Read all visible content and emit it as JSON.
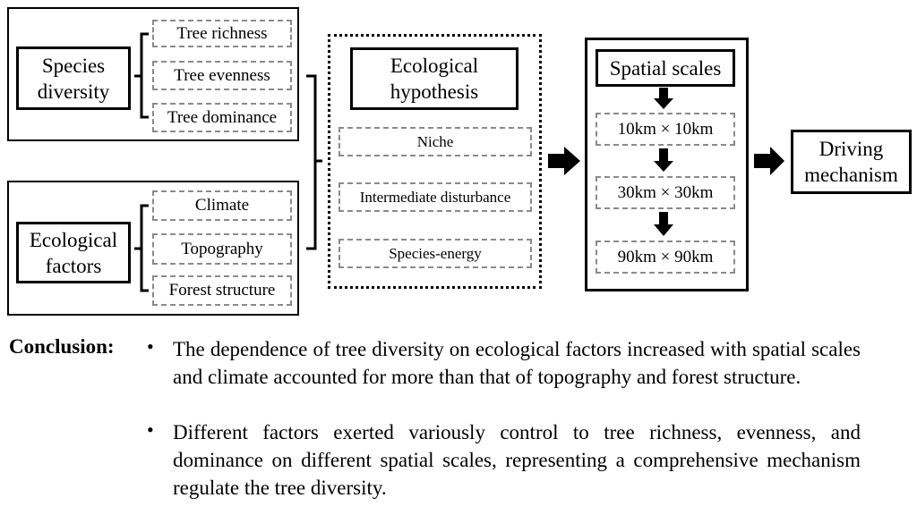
{
  "groups": [
    {
      "label": "Species diversity",
      "items": [
        "Tree richness",
        "Tree evenness",
        "Tree dominance"
      ]
    },
    {
      "label": "Ecological factors",
      "items": [
        "Climate",
        "Topography",
        "Forest structure"
      ]
    }
  ],
  "hypothesis": {
    "title": "Ecological hypothesis",
    "items": [
      "Niche",
      "Intermediate disturbance",
      "Species-energy"
    ]
  },
  "scales": {
    "title": "Spatial scales",
    "items": [
      "10km × 10km",
      "30km × 30km",
      "90km × 90km"
    ]
  },
  "outcome": "Driving mechanism",
  "conclusion": {
    "label": "Conclusion:",
    "points": [
      "The dependence of tree diversity on ecological factors increased with spatial scales and climate accounted for more than that of topography and forest structure.",
      "Different factors exerted variously control to tree richness, evenness, and dominance on different spatial scales, representing a comprehensive mechanism regulate the tree diversity."
    ]
  }
}
